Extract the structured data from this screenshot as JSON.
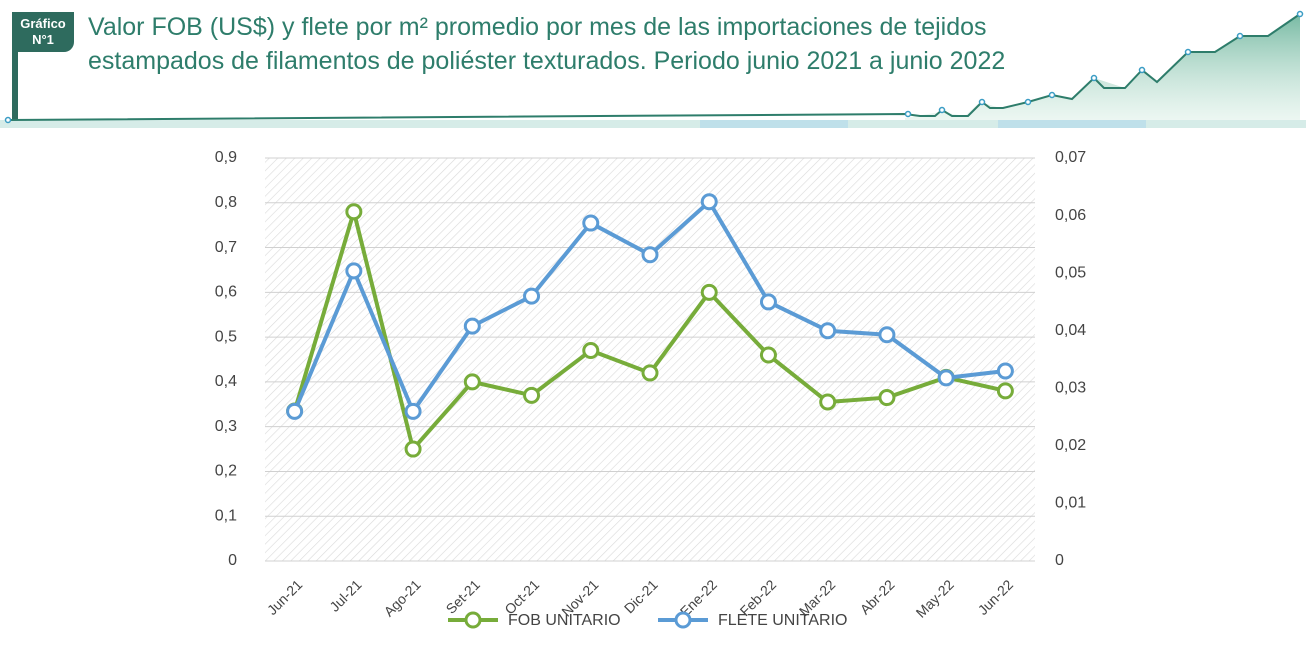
{
  "chart_data": {
    "type": "line",
    "badge": [
      "Gráfico",
      "N°1"
    ],
    "title": "Valor FOB (US$) y flete por m² promedio por mes de las importaciones de tejidos estampados de filamentos de poliéster texturados. Periodo junio 2021 a junio 2022",
    "categories": [
      "Jun-21",
      "Jul-21",
      "Ago-21",
      "Set-21",
      "Oct-21",
      "Nov-21",
      "Dic-21",
      "Ene-22",
      "Feb-22",
      "Mar-22",
      "Abr-22",
      "May-22",
      "Jun-22"
    ],
    "series": [
      {
        "name": "FOB UNITARIO",
        "color": "#77ac3a",
        "values": [
          0.335,
          0.78,
          0.25,
          0.4,
          0.37,
          0.47,
          0.42,
          0.6,
          0.46,
          0.355,
          0.365,
          0.41,
          0.38
        ]
      },
      {
        "name": "FLETE UNITARIO",
        "color": "#5b9bd5",
        "axis": "y2",
        "values": [
          0.026,
          0.0504,
          0.026,
          0.0408,
          0.046,
          0.0587,
          0.0532,
          0.0624,
          0.045,
          0.04,
          0.0393,
          0.0318,
          0.033
        ]
      }
    ],
    "ylim": [
      0,
      0.9
    ],
    "yticks": [
      0,
      {
        "value": 0.1,
        "label": "0,1"
      },
      {
        "value": 0.2,
        "label": "0,2"
      },
      {
        "value": 0.3,
        "label": "0,3"
      },
      {
        "value": 0.4,
        "label": "0,4"
      },
      {
        "value": 0.5,
        "label": "0,5"
      },
      {
        "value": 0.6,
        "label": "0,6"
      },
      {
        "value": 0.7,
        "label": "0,7"
      },
      {
        "value": 0.8,
        "label": "0,8"
      },
      {
        "value": 0.9,
        "label": "0,9"
      }
    ],
    "y2lim": [
      0,
      0.07
    ],
    "y2ticks": [
      0,
      {
        "value": 0.01,
        "label": "0,01"
      },
      {
        "value": 0.02,
        "label": "0,02"
      },
      {
        "value": 0.03,
        "label": "0,03"
      },
      {
        "value": 0.04,
        "label": "0,04"
      },
      {
        "value": 0.05,
        "label": "0,05"
      },
      {
        "value": 0.06,
        "label": "0,06"
      },
      {
        "value": 0.07,
        "label": "0,07"
      }
    ],
    "grid": true
  }
}
